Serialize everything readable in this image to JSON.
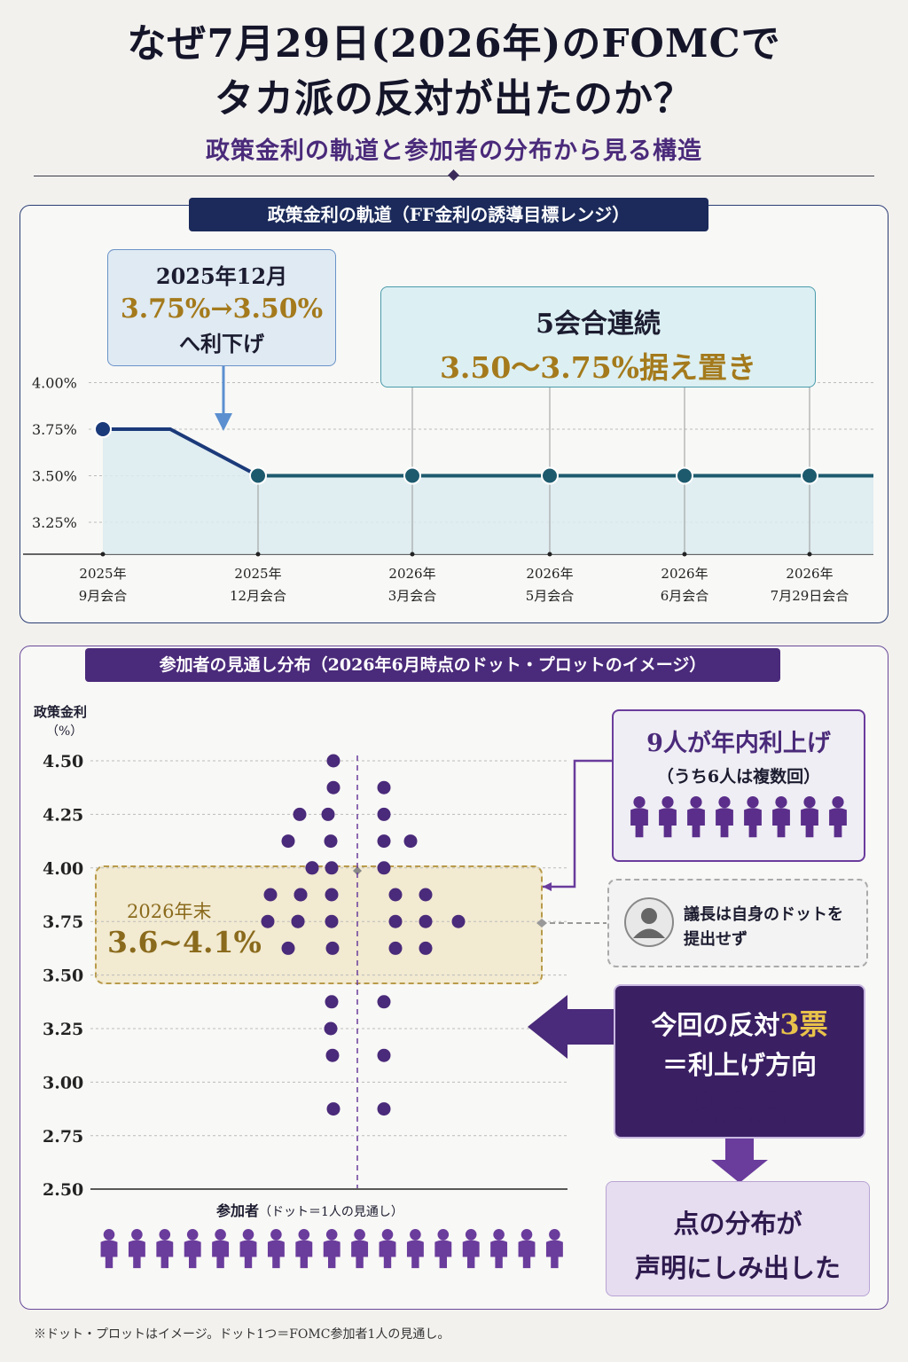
{
  "title_line1": "なぜ7月29日(2026年)のFOMCで",
  "title_line2": "タカ派の反対が出たのか？",
  "subtitle": "政策金利の軌道と参加者の分布から見る構造",
  "panel1": {
    "banner": "政策金利の軌道（FF金利の誘導目標レンジ）",
    "callout1": {
      "line1": "2025年12月",
      "line2": "3.75%→3.50%",
      "line3": "へ利下げ"
    },
    "callout2": {
      "line1": "5会合連続",
      "line2": "3.50〜3.75%据え置き"
    }
  },
  "panel2": {
    "banner": "参加者の見通し分布（2026年6月時点のドット・プロットのイメージ）",
    "ylabel": "政策金利",
    "yunit": "（%）",
    "xlabel": "参加者",
    "xlabel_note": "（ドット＝1人の見通し）",
    "range_box": {
      "label": "2026年末",
      "value": "3.6~4.1%"
    },
    "box_hike": {
      "line1": "9人が年内利上げ",
      "line2": "（うち6人は複数回）"
    },
    "box_chair": {
      "line1": "議長は自身のドットを",
      "line2": "提出せず"
    },
    "box_dissent": {
      "pre": "今回の反対",
      "num": "3票",
      "line2": "＝利上げ方向"
    },
    "box_result": {
      "line1": "点の分布が",
      "line2": "声明にしみ出した"
    }
  },
  "footnote": "※ドット・プロットはイメージ。ドット1つ＝FOMC参加者1人の見通し。",
  "icons": {
    "person": "person-icon",
    "avatar": "user-avatar-icon",
    "arrow": "arrow-left-icon"
  },
  "colors": {
    "navy": "#1b2a5a",
    "teal": "#1d5a6e",
    "purple": "#4a2a7a",
    "gold": "#a47a1c"
  },
  "chart_data": [
    {
      "type": "line",
      "title": "政策金利の軌道（FF金利の誘導目標レンジ）",
      "categories": [
        "2025年\n9月会合",
        "2025年\n12月会合",
        "2026年\n3月会合",
        "2026年\n5月会合",
        "2026年\n6月会合",
        "2026年\n7月29日会合"
      ],
      "values": [
        3.75,
        3.5,
        3.5,
        3.5,
        3.5,
        3.5
      ],
      "yticks": [
        "4.00%",
        "3.75%",
        "3.50%",
        "3.25%"
      ],
      "ylim": [
        3.25,
        4.0
      ],
      "grid": true
    },
    {
      "type": "scatter",
      "title": "参加者の見通し分布（2026年6月時点のドット・プロットのイメージ）",
      "ylabel": "政策金利（%）",
      "xlabel": "参加者（ドット＝1人の見通し）",
      "yticks": [
        "4.50",
        "4.25",
        "4.00",
        "3.75",
        "3.50",
        "3.25",
        "3.00",
        "2.75",
        "2.50"
      ],
      "ylim": [
        2.5,
        4.5
      ],
      "left_columns": [
        {
          "col": 1,
          "values": [
            3.875,
            3.75
          ]
        },
        {
          "col": 2,
          "values": [
            4.25,
            4.125,
            4.0,
            3.875,
            3.75,
            3.625
          ]
        },
        {
          "col": 3,
          "values": [
            4.0,
            3.875,
            3.75
          ]
        },
        {
          "col": 4,
          "values": [
            4.5,
            4.375,
            4.25,
            4.125,
            4.0,
            3.875,
            3.75,
            3.625,
            3.375,
            3.25,
            3.125,
            2.875
          ]
        }
      ],
      "right_columns": [
        {
          "col": 1,
          "values": [
            4.375,
            4.25,
            4.125,
            4.0,
            3.375,
            3.125,
            2.875
          ]
        },
        {
          "col": 2,
          "values": [
            3.875,
            3.75,
            3.625
          ]
        },
        {
          "col": 3,
          "values": [
            4.125
          ]
        },
        {
          "col": 4,
          "values": [
            3.875,
            3.75,
            3.625
          ]
        },
        {
          "col": 5,
          "values": [
            3.75
          ]
        }
      ],
      "highlight_range": [
        3.6,
        4.1
      ],
      "grid": true
    }
  ]
}
